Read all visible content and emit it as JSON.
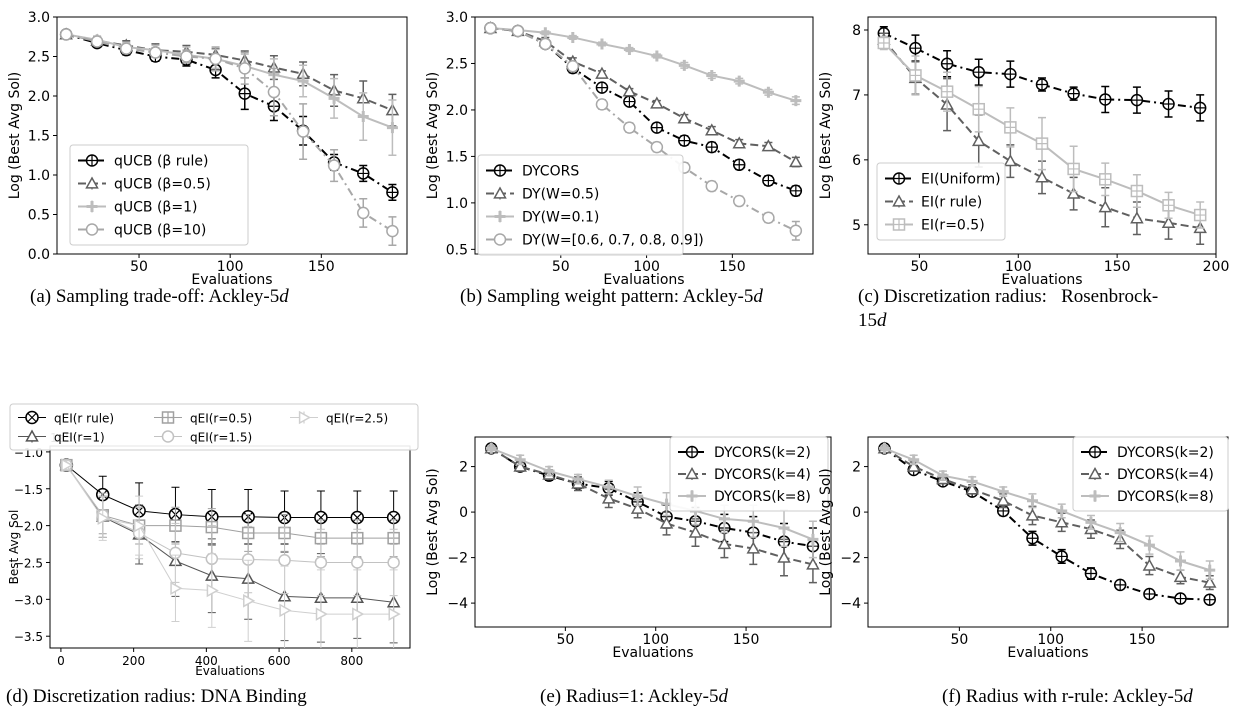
{
  "figure": {
    "captions": [
      {
        "prefix": "(a) Sampling trade-off: Ackley-5",
        "ital": "d"
      },
      {
        "prefix": "(b) Sampling weight pattern: Ackley-5",
        "ital": "d"
      },
      {
        "prefix": "(c) Discretization radius:   Rosenbrock-",
        "line2": "15",
        "ital": "d"
      },
      {
        "prefix": "(d) Discretization radius: DNA Binding",
        "ital": ""
      },
      {
        "prefix": "(e) Radius=1: Ackley-5",
        "ital": "d"
      },
      {
        "prefix": "(f) Radius with r-rule: Ackley-5",
        "ital": "d"
      }
    ]
  },
  "chart_data": [
    {
      "id": "a",
      "type": "line",
      "xlabel": "Evaluations",
      "ylabel": "Log (Best Avg Sol)",
      "xlim": [
        5,
        197
      ],
      "ylim": [
        0.0,
        3.0
      ],
      "xticks": [
        50,
        100,
        150
      ],
      "yticks": [
        0.0,
        0.5,
        1.0,
        1.5,
        2.0,
        2.5,
        3.0
      ],
      "ytick_labels": [
        "0.0",
        "0.5",
        "1.0",
        "1.5",
        "2.0",
        "2.5",
        "3.0"
      ],
      "x": [
        10,
        27,
        43,
        59,
        76,
        92,
        108,
        124,
        140,
        157,
        173,
        189
      ],
      "legend_position": "lower-left",
      "series": [
        {
          "name": "qUCB (β rule)",
          "color": "#000000",
          "dash": "8,4,2,4",
          "marker": "circle-cross",
          "values": [
            2.78,
            2.67,
            2.58,
            2.5,
            2.46,
            2.33,
            2.03,
            1.87,
            1.56,
            1.16,
            1.02,
            0.78
          ],
          "errors": [
            0.03,
            0.05,
            0.06,
            0.06,
            0.08,
            0.1,
            0.2,
            0.18,
            0.18,
            0.1,
            0.1,
            0.1
          ]
        },
        {
          "name": "qUCB (β=0.5)",
          "color": "#606060",
          "dash": "8,4",
          "marker": "triangle",
          "values": [
            2.78,
            2.7,
            2.64,
            2.58,
            2.56,
            2.52,
            2.45,
            2.36,
            2.28,
            2.07,
            1.97,
            1.82
          ],
          "errors": [
            0.03,
            0.05,
            0.06,
            0.08,
            0.08,
            0.08,
            0.12,
            0.15,
            0.15,
            0.2,
            0.22,
            0.2
          ]
        },
        {
          "name": "qUCB (β=1)",
          "color": "#bdbdbd",
          "dash": "",
          "marker": "plus",
          "values": [
            2.78,
            2.71,
            2.62,
            2.58,
            2.52,
            2.47,
            2.38,
            2.27,
            2.19,
            1.97,
            1.74,
            1.6
          ],
          "errors": [
            0.03,
            0.05,
            0.06,
            0.06,
            0.1,
            0.12,
            0.15,
            0.2,
            0.2,
            0.25,
            0.3,
            0.35
          ]
        },
        {
          "name": "qUCB (β=10)",
          "color": "#a8a8a8",
          "dash": "8,4,2,4",
          "marker": "circle",
          "values": [
            2.78,
            2.69,
            2.6,
            2.55,
            2.5,
            2.47,
            2.35,
            2.05,
            1.55,
            1.12,
            0.52,
            0.29
          ],
          "errors": [
            0.03,
            0.05,
            0.06,
            0.06,
            0.08,
            0.15,
            0.2,
            0.3,
            0.35,
            0.2,
            0.18,
            0.18
          ]
        }
      ]
    },
    {
      "id": "b",
      "type": "line",
      "xlabel": "Evaluations",
      "ylabel": "Log (Best Avg Sol)",
      "xlim": [
        0,
        197
      ],
      "ylim": [
        0.45,
        3.0
      ],
      "xticks": [
        50,
        100,
        150
      ],
      "yticks": [
        0.5,
        1.0,
        1.5,
        2.0,
        2.5,
        3.0
      ],
      "ytick_labels": [
        "0.5",
        "1.0",
        "1.5",
        "2.0",
        "2.5",
        "3.0"
      ],
      "x": [
        9,
        25,
        41,
        57,
        74,
        90,
        106,
        122,
        138,
        154,
        171,
        187
      ],
      "legend_position": "lower-left",
      "series": [
        {
          "name": "DYCORS",
          "color": "#000000",
          "dash": "8,4,2,4",
          "marker": "circle-cross",
          "values": [
            2.88,
            2.85,
            2.71,
            2.45,
            2.24,
            2.09,
            1.81,
            1.67,
            1.6,
            1.41,
            1.24,
            1.13
          ],
          "errors": [
            0.02,
            0.02,
            0.04,
            0.05,
            0.04,
            0.04,
            0.04,
            0.05,
            0.05,
            0.05,
            0.05,
            0.05
          ]
        },
        {
          "name": "DY(W=0.5)",
          "color": "#606060",
          "dash": "8,4",
          "marker": "triangle",
          "values": [
            2.88,
            2.85,
            2.74,
            2.52,
            2.39,
            2.2,
            2.07,
            1.91,
            1.78,
            1.64,
            1.61,
            1.44
          ],
          "errors": [
            0.02,
            0.02,
            0.04,
            0.04,
            0.03,
            0.03,
            0.03,
            0.04,
            0.04,
            0.04,
            0.04,
            0.05
          ]
        },
        {
          "name": "DY(W=0.1)",
          "color": "#bdbdbd",
          "dash": "",
          "marker": "plus",
          "values": [
            2.88,
            2.86,
            2.83,
            2.78,
            2.71,
            2.65,
            2.58,
            2.48,
            2.37,
            2.31,
            2.19,
            2.1
          ],
          "errors": [
            0.02,
            0.02,
            0.02,
            0.02,
            0.02,
            0.02,
            0.02,
            0.03,
            0.03,
            0.03,
            0.03,
            0.04
          ]
        },
        {
          "name": "DY(W=[0.6, 0.7, 0.8, 0.9])",
          "color": "#a8a8a8",
          "dash": "8,4,2,4",
          "marker": "circle",
          "values": [
            2.88,
            2.85,
            2.71,
            2.47,
            2.06,
            1.81,
            1.6,
            1.38,
            1.18,
            1.02,
            0.84,
            0.7
          ],
          "errors": [
            0.02,
            0.02,
            0.04,
            0.05,
            0.05,
            0.05,
            0.05,
            0.05,
            0.05,
            0.05,
            0.05,
            0.1
          ]
        }
      ]
    },
    {
      "id": "c",
      "type": "line",
      "xlabel": "Evaluations",
      "ylabel": "Log (Best Avg Sol)",
      "xlim": [
        24,
        200
      ],
      "ylim": [
        4.55,
        8.2
      ],
      "xticks": [
        50,
        100,
        150,
        200
      ],
      "yticks": [
        5,
        6,
        7,
        8
      ],
      "ytick_labels": [
        "5",
        "6",
        "7",
        "8"
      ],
      "x": [
        32,
        48,
        64,
        80,
        96,
        112,
        128,
        144,
        160,
        176,
        192
      ],
      "legend_position": "lower-left",
      "series": [
        {
          "name": "EI(Uniform)",
          "color": "#000000",
          "dash": "8,4,2,4",
          "marker": "circle-cross",
          "values": [
            7.95,
            7.72,
            7.48,
            7.35,
            7.32,
            7.16,
            7.02,
            6.93,
            6.92,
            6.86,
            6.8
          ],
          "errors": [
            0.1,
            0.2,
            0.2,
            0.2,
            0.2,
            0.1,
            0.1,
            0.2,
            0.2,
            0.2,
            0.2
          ]
        },
        {
          "name": "EI(r rule)",
          "color": "#606060",
          "dash": "8,4",
          "marker": "triangle",
          "values": [
            7.85,
            7.26,
            6.85,
            6.29,
            5.98,
            5.73,
            5.48,
            5.27,
            5.1,
            5.03,
            4.95
          ],
          "errors": [
            0.1,
            0.25,
            0.4,
            0.4,
            0.25,
            0.25,
            0.25,
            0.3,
            0.25,
            0.25,
            0.25
          ]
        },
        {
          "name": "EI(r=0.5)",
          "color": "#bdbdbd",
          "dash": "",
          "marker": "square-plus",
          "values": [
            7.8,
            7.3,
            7.05,
            6.78,
            6.5,
            6.25,
            5.86,
            5.7,
            5.52,
            5.3,
            5.15
          ],
          "errors": [
            0.1,
            0.3,
            0.3,
            0.35,
            0.3,
            0.4,
            0.35,
            0.25,
            0.25,
            0.2,
            0.2
          ]
        }
      ]
    },
    {
      "id": "d",
      "type": "line",
      "xlabel": "Evaluations",
      "ylabel": "Best Avg Sol",
      "axis_multiplier": "1e5",
      "xlim": [
        -30,
        960
      ],
      "ylim": [
        -3.66,
        -0.92
      ],
      "xticks": [
        0,
        200,
        400,
        600,
        800
      ],
      "yticks": [
        -1.0,
        -1.5,
        -2.0,
        -2.5,
        -3.0,
        -3.5
      ],
      "ytick_labels": [
        "−1.0",
        "−1.5",
        "−2.0",
        "−2.5",
        "−3.0",
        "−3.5"
      ],
      "x": [
        15,
        115,
        215,
        315,
        415,
        515,
        615,
        715,
        815,
        915
      ],
      "legend_position": "above",
      "series": [
        {
          "name": "qEI(r rule)",
          "color": "#000000",
          "dash": "",
          "marker": "circle-x",
          "values": [
            -1.18,
            -1.58,
            -1.8,
            -1.85,
            -1.88,
            -1.88,
            -1.89,
            -1.89,
            -1.89,
            -1.89
          ],
          "errors": [
            0.06,
            0.25,
            0.38,
            0.37,
            0.37,
            0.37,
            0.36,
            0.36,
            0.36,
            0.36
          ]
        },
        {
          "name": "qEI(r=1)",
          "color": "#555555",
          "dash": "",
          "marker": "triangle",
          "values": [
            -1.18,
            -1.88,
            -2.12,
            -2.48,
            -2.68,
            -2.72,
            -2.96,
            -2.98,
            -2.98,
            -3.04
          ],
          "errors": [
            0.06,
            0.28,
            0.4,
            0.48,
            0.5,
            0.55,
            0.6,
            0.6,
            0.55,
            0.55
          ]
        },
        {
          "name": "qEI(r=0.5)",
          "color": "#a0a0a0",
          "dash": "",
          "marker": "square-plus",
          "values": [
            -1.18,
            -1.86,
            -2.0,
            -2.0,
            -2.02,
            -2.1,
            -2.1,
            -2.17,
            -2.17,
            -2.17
          ],
          "errors": [
            0.06,
            0.25,
            0.25,
            0.25,
            0.25,
            0.25,
            0.25,
            0.25,
            0.25,
            0.25
          ]
        },
        {
          "name": "qEI(r=1.5)",
          "color": "#c2c2c2",
          "dash": "",
          "marker": "circle",
          "values": [
            -1.18,
            -1.86,
            -2.1,
            -2.37,
            -2.45,
            -2.46,
            -2.47,
            -2.5,
            -2.5,
            -2.5
          ],
          "errors": [
            0.06,
            0.3,
            0.35,
            0.4,
            0.45,
            0.45,
            0.45,
            0.45,
            0.45,
            0.45
          ]
        },
        {
          "name": "qEI(r=2.5)",
          "color": "#cfcfcf",
          "dash": "",
          "marker": "triangle-right",
          "values": [
            -1.18,
            -1.9,
            -2.0,
            -2.85,
            -2.88,
            -3.02,
            -3.15,
            -3.2,
            -3.2,
            -3.2
          ],
          "errors": [
            0.06,
            0.3,
            0.4,
            0.45,
            0.5,
            0.55,
            0.6,
            0.6,
            0.6,
            0.6
          ]
        }
      ]
    },
    {
      "id": "e",
      "type": "line",
      "xlabel": "Evaluations",
      "ylabel": "Log (Best Avg Sol)",
      "xlim": [
        0,
        197
      ],
      "ylim": [
        -5.05,
        3.3
      ],
      "xticks": [
        50,
        100,
        150
      ],
      "yticks": [
        -4,
        -2,
        0,
        2
      ],
      "ytick_labels": [
        "−4",
        "−2",
        "0",
        "2"
      ],
      "x": [
        9,
        25,
        41,
        57,
        74,
        90,
        106,
        122,
        138,
        154,
        171,
        187
      ],
      "legend_position": "upper-right",
      "series": [
        {
          "name": "DYCORS(k=2)",
          "color": "#000000",
          "dash": "8,4,2,4",
          "marker": "circle-cross",
          "values": [
            2.8,
            2.0,
            1.6,
            1.25,
            1.05,
            0.45,
            -0.2,
            -0.4,
            -0.7,
            -0.9,
            -1.3,
            -1.5
          ],
          "errors": [
            0.1,
            0.2,
            0.2,
            0.2,
            0.3,
            0.4,
            0.5,
            0.6,
            0.6,
            0.7,
            0.8,
            0.8
          ]
        },
        {
          "name": "DYCORS(k=4)",
          "color": "#606060",
          "dash": "8,4",
          "marker": "triangle",
          "values": [
            2.8,
            2.0,
            1.65,
            1.25,
            0.6,
            0.15,
            -0.5,
            -0.9,
            -1.4,
            -1.6,
            -2.0,
            -2.3
          ],
          "errors": [
            0.1,
            0.2,
            0.2,
            0.3,
            0.4,
            0.4,
            0.5,
            0.6,
            0.6,
            0.7,
            0.8,
            0.8
          ]
        },
        {
          "name": "DYCORS(k=8)",
          "color": "#bdbdbd",
          "dash": "",
          "marker": "plus",
          "values": [
            2.8,
            2.3,
            1.8,
            1.45,
            1.1,
            0.7,
            0.35,
            0.05,
            -0.3,
            -0.4,
            -0.7,
            -1.2
          ],
          "errors": [
            0.1,
            0.2,
            0.2,
            0.2,
            0.3,
            0.4,
            0.5,
            0.6,
            0.6,
            0.7,
            0.8,
            0.8
          ]
        }
      ]
    },
    {
      "id": "f",
      "type": "line",
      "xlabel": "Evaluations",
      "ylabel": "Log (Best Avg Sol)",
      "xlim": [
        0,
        197
      ],
      "ylim": [
        -5.05,
        3.3
      ],
      "xticks": [
        50,
        100,
        150
      ],
      "yticks": [
        -4,
        -2,
        0,
        2
      ],
      "ytick_labels": [
        "−4",
        "−2",
        "0",
        "2"
      ],
      "x": [
        9,
        25,
        41,
        57,
        74,
        90,
        106,
        122,
        138,
        154,
        171,
        187
      ],
      "legend_position": "upper-right",
      "series": [
        {
          "name": "DYCORS(k=2)",
          "color": "#000000",
          "dash": "8,4,2,4",
          "marker": "circle-cross",
          "values": [
            2.8,
            1.85,
            1.35,
            0.9,
            0.05,
            -1.15,
            -1.95,
            -2.7,
            -3.2,
            -3.6,
            -3.8,
            -3.85
          ],
          "errors": [
            0.1,
            0.15,
            0.15,
            0.15,
            0.2,
            0.3,
            0.3,
            0.25,
            0.15,
            0.12,
            0.12,
            0.12
          ]
        },
        {
          "name": "DYCORS(k=4)",
          "color": "#606060",
          "dash": "8,4",
          "marker": "triangle",
          "values": [
            2.8,
            2.0,
            1.45,
            1.0,
            0.5,
            -0.15,
            -0.45,
            -0.75,
            -1.2,
            -2.35,
            -2.85,
            -3.1
          ],
          "errors": [
            0.1,
            0.2,
            0.2,
            0.2,
            0.3,
            0.4,
            0.4,
            0.4,
            0.4,
            0.4,
            0.3,
            0.3
          ]
        },
        {
          "name": "DYCORS(k=8)",
          "color": "#bdbdbd",
          "dash": "",
          "marker": "plus",
          "values": [
            2.8,
            2.3,
            1.6,
            1.35,
            0.9,
            0.5,
            0.05,
            -0.45,
            -0.9,
            -1.45,
            -2.15,
            -2.55
          ],
          "errors": [
            0.1,
            0.2,
            0.2,
            0.2,
            0.2,
            0.3,
            0.3,
            0.3,
            0.4,
            0.4,
            0.4,
            0.4
          ]
        }
      ]
    }
  ]
}
